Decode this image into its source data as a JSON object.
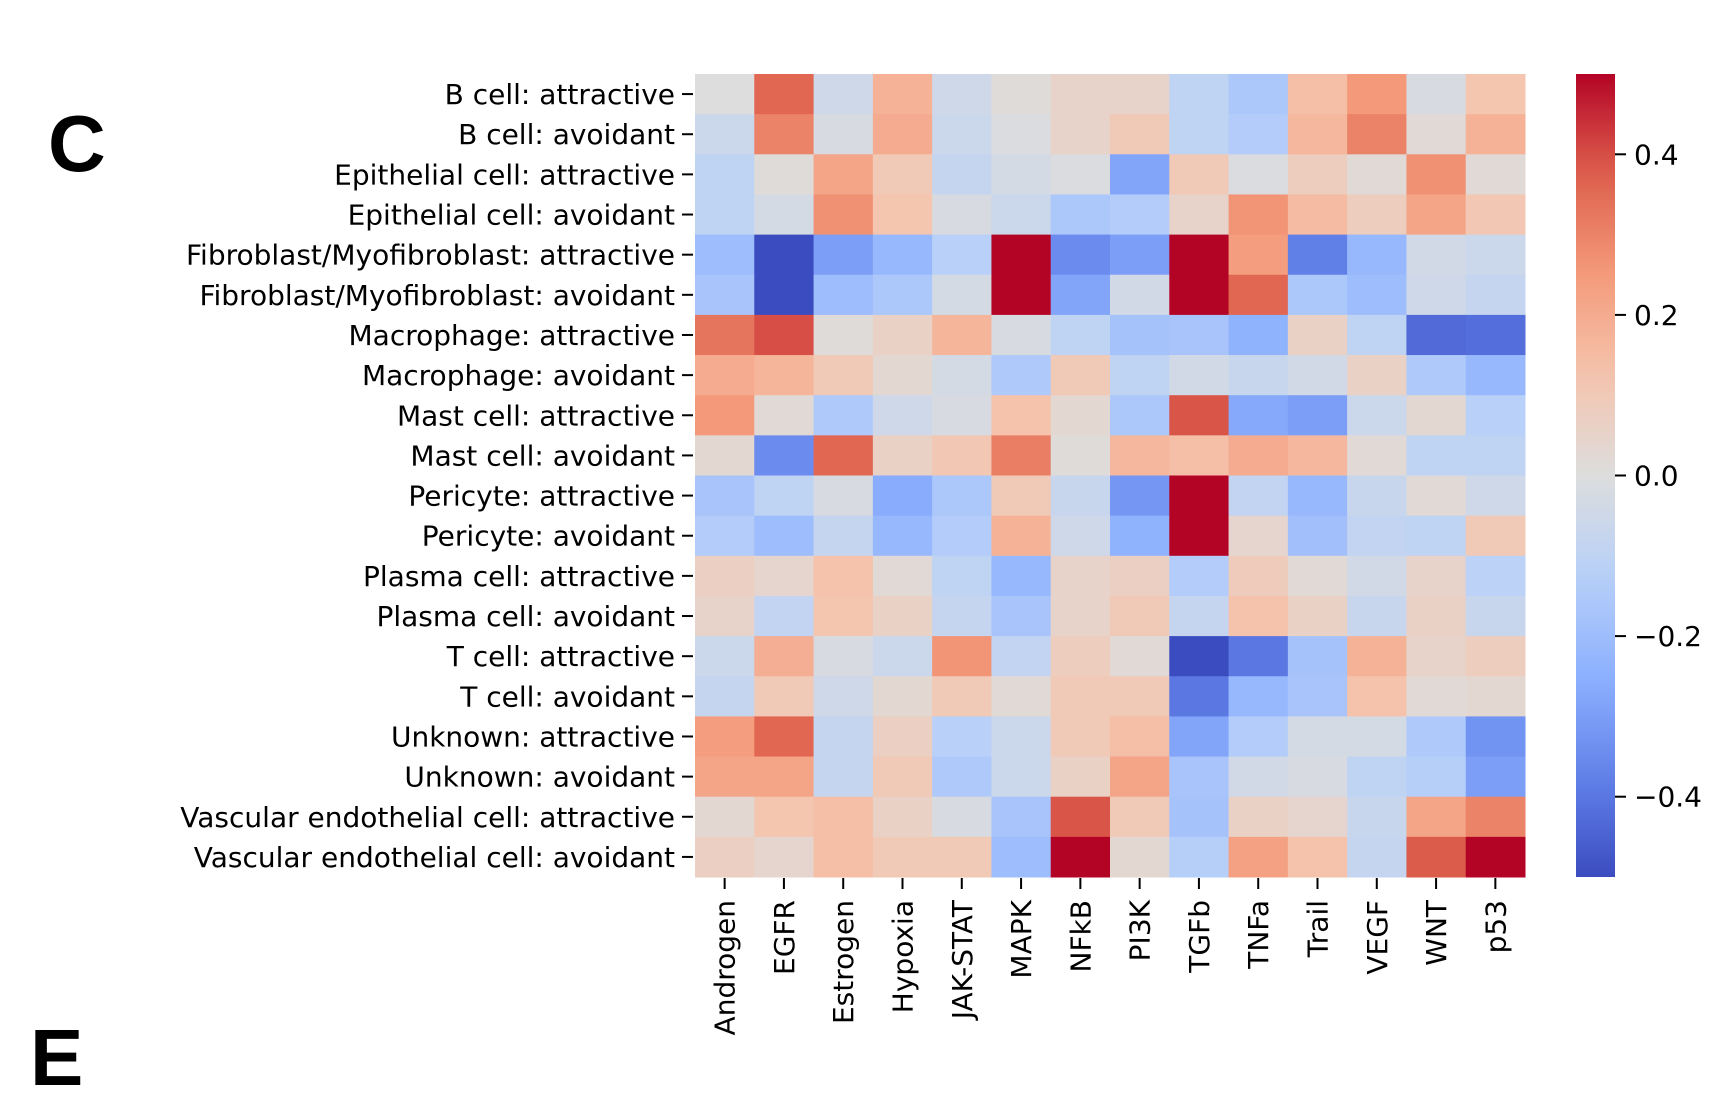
{
  "panels": {
    "current": "C",
    "next": "E"
  },
  "chart_data": {
    "type": "heatmap",
    "rows": [
      "B cell: attractive",
      "B cell: avoidant",
      "Epithelial cell: attractive",
      "Epithelial cell: avoidant",
      "Fibroblast/Myofibroblast: attractive",
      "Fibroblast/Myofibroblast: avoidant",
      "Macrophage: attractive",
      "Macrophage: avoidant",
      "Mast cell: attractive",
      "Mast cell: avoidant",
      "Pericyte: attractive",
      "Pericyte: avoidant",
      "Plasma cell: attractive",
      "Plasma cell: avoidant",
      "T cell: attractive",
      "T cell: avoidant",
      "Unknown: attractive",
      "Unknown: avoidant",
      "Vascular endothelial cell: attractive",
      "Vascular endothelial cell: avoidant"
    ],
    "columns": [
      "Androgen",
      "EGFR",
      "Estrogen",
      "Hypoxia",
      "JAK-STAT",
      "MAPK",
      "NFkB",
      "PI3K",
      "TGFb",
      "TNFa",
      "Trail",
      "VEGF",
      "WNT",
      "p53"
    ],
    "values": [
      [
        0.0,
        0.36,
        -0.05,
        0.18,
        -0.05,
        0.01,
        0.05,
        0.05,
        -0.1,
        -0.16,
        0.14,
        0.25,
        -0.02,
        0.12
      ],
      [
        -0.06,
        0.3,
        -0.02,
        0.2,
        -0.06,
        -0.01,
        0.05,
        0.1,
        -0.1,
        -0.14,
        0.16,
        0.3,
        0.02,
        0.18
      ],
      [
        -0.1,
        0.01,
        0.22,
        0.1,
        -0.08,
        -0.03,
        -0.01,
        -0.28,
        0.1,
        -0.01,
        0.08,
        0.02,
        0.27,
        0.02
      ],
      [
        -0.1,
        -0.03,
        0.27,
        0.12,
        -0.02,
        -0.06,
        -0.16,
        -0.14,
        0.05,
        0.26,
        0.15,
        0.08,
        0.22,
        0.11
      ],
      [
        -0.2,
        -0.5,
        -0.3,
        -0.22,
        -0.12,
        0.5,
        -0.35,
        -0.3,
        0.5,
        0.24,
        -0.38,
        -0.22,
        -0.04,
        -0.06
      ],
      [
        -0.17,
        -0.5,
        -0.2,
        -0.16,
        -0.03,
        0.5,
        -0.28,
        -0.04,
        0.5,
        0.36,
        -0.16,
        -0.2,
        -0.05,
        -0.08
      ],
      [
        0.33,
        0.4,
        0.01,
        0.06,
        0.17,
        -0.02,
        -0.1,
        -0.18,
        -0.17,
        -0.24,
        0.06,
        -0.1,
        -0.43,
        -0.42
      ],
      [
        0.2,
        0.17,
        0.1,
        0.03,
        -0.03,
        -0.15,
        0.1,
        -0.1,
        -0.04,
        -0.07,
        -0.04,
        0.06,
        -0.15,
        -0.22
      ],
      [
        0.25,
        0.02,
        -0.15,
        -0.05,
        -0.02,
        0.13,
        0.03,
        -0.16,
        0.39,
        -0.27,
        -0.3,
        -0.06,
        0.03,
        -0.12
      ],
      [
        0.03,
        -0.35,
        0.36,
        0.06,
        0.11,
        0.31,
        0.01,
        0.16,
        0.14,
        0.2,
        0.16,
        0.02,
        -0.1,
        -0.1
      ],
      [
        -0.17,
        -0.1,
        -0.02,
        -0.26,
        -0.16,
        0.1,
        -0.07,
        -0.32,
        0.5,
        -0.09,
        -0.22,
        -0.07,
        0.02,
        -0.05
      ],
      [
        -0.14,
        -0.2,
        -0.08,
        -0.22,
        -0.14,
        0.18,
        -0.05,
        -0.24,
        0.5,
        0.04,
        -0.19,
        -0.09,
        -0.1,
        0.1
      ],
      [
        0.07,
        0.04,
        0.13,
        0.02,
        -0.1,
        -0.22,
        0.05,
        0.07,
        -0.14,
        0.09,
        0.02,
        -0.04,
        0.05,
        -0.11
      ],
      [
        0.05,
        -0.09,
        0.12,
        0.06,
        -0.08,
        -0.17,
        0.05,
        0.1,
        -0.08,
        0.13,
        0.06,
        -0.07,
        0.06,
        -0.07
      ],
      [
        -0.06,
        0.19,
        -0.02,
        -0.06,
        0.26,
        -0.09,
        0.08,
        0.02,
        -0.5,
        -0.4,
        -0.18,
        0.18,
        0.05,
        0.08
      ],
      [
        -0.08,
        0.1,
        -0.05,
        0.03,
        0.1,
        0.02,
        0.1,
        0.1,
        -0.4,
        -0.22,
        -0.17,
        0.13,
        0.02,
        0.03
      ],
      [
        0.24,
        0.36,
        -0.08,
        0.07,
        -0.12,
        -0.06,
        0.1,
        0.14,
        -0.28,
        -0.14,
        -0.03,
        -0.03,
        -0.15,
        -0.33
      ],
      [
        0.22,
        0.22,
        -0.08,
        0.1,
        -0.15,
        -0.06,
        0.06,
        0.22,
        -0.17,
        -0.04,
        -0.02,
        -0.1,
        -0.13,
        -0.3
      ],
      [
        0.03,
        0.12,
        0.14,
        0.06,
        -0.02,
        -0.17,
        0.39,
        0.1,
        -0.18,
        0.06,
        0.04,
        -0.07,
        0.22,
        0.3
      ],
      [
        0.07,
        0.04,
        0.14,
        0.1,
        0.1,
        -0.2,
        0.5,
        0.03,
        -0.13,
        0.23,
        0.13,
        -0.08,
        0.38,
        0.5
      ]
    ],
    "colormap": "coolwarm",
    "vmin": -0.5,
    "vmax": 0.5,
    "colorbar": {
      "ticks": [
        -0.4,
        -0.2,
        0.0,
        0.2,
        0.4
      ],
      "tick_labels": [
        "−0.4",
        "−0.2",
        "0.0",
        "0.2",
        "0.4"
      ]
    },
    "title": "",
    "xlabel": "",
    "ylabel": ""
  }
}
